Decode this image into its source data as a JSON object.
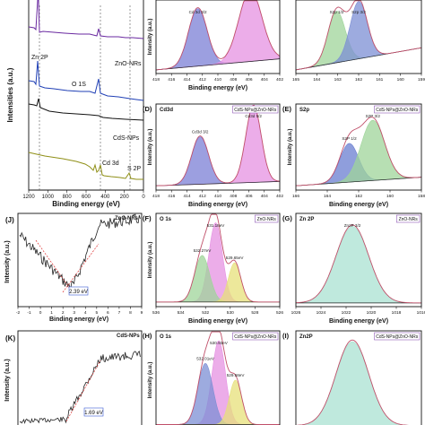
{
  "chart_data": [
    {
      "id": "survey",
      "type": "line",
      "xlabel": "Binding energy (eV)",
      "ylabel": "Intensities (a.u.)",
      "xlim": [
        1200,
        0
      ],
      "xticks": [
        "1200",
        "1000",
        "800",
        "600",
        "400",
        "200",
        "0"
      ],
      "annotations": [
        "Zn 2P",
        "O 1S",
        "Cd 3d",
        "S 2P"
      ],
      "series": [
        {
          "name": "ZnO-NRs",
          "color": "#6a2aa0"
        },
        {
          "name": "",
          "color": "#1f3fb5"
        },
        {
          "name": "",
          "color": "#111111"
        },
        {
          "name": "CdS-NPs",
          "color": "#8f8f16"
        }
      ]
    },
    {
      "id": "C",
      "type": "area",
      "xlabel": "Binding energy (eV)",
      "ylabel": "Intensity (a.u.)",
      "xlim": [
        418,
        402
      ],
      "xticks": [
        "418",
        "416",
        "414",
        "412",
        "410",
        "408",
        "406",
        "404",
        "402"
      ],
      "peaks": [
        {
          "label": "Cd 3d 3/2",
          "center": 412.6,
          "color": "#7b7fd6"
        },
        {
          "label": "",
          "center": 405.8,
          "color": "#e591e2"
        }
      ]
    },
    {
      "id": "B",
      "type": "area",
      "xlabel": "",
      "ylabel": "",
      "xlim": [
        166,
        158
      ],
      "xticks": [
        "165",
        "164",
        "163",
        "162",
        "161",
        "160",
        "159"
      ],
      "peaks": [
        {
          "label": "S2p 1/2",
          "center": 163.4,
          "color": "#9fd49a"
        },
        {
          "label": "S2p 3/2",
          "center": 162.0,
          "color": "#7c8fd4"
        }
      ]
    },
    {
      "id": "D",
      "panel": "(D)",
      "title": "Cd3d",
      "tag": "CdS-NPs@ZnO-NRs",
      "type": "area",
      "xlabel": "Binding energy (eV)",
      "ylabel": "Intensity (a.u.)",
      "xlim": [
        418,
        402
      ],
      "xticks": [
        "418",
        "416",
        "414",
        "412",
        "410",
        "408",
        "406",
        "404",
        "402"
      ],
      "peaks": [
        {
          "label": "Cd3d 3/2",
          "center": 412.3,
          "color": "#7b7fd6"
        },
        {
          "label": "Cd3d 5/2",
          "center": 405.4,
          "color": "#e591e2"
        }
      ]
    },
    {
      "id": "E",
      "panel": "(E)",
      "title": "S2p",
      "tag": "CdS-NPs@ZnO-NRs",
      "type": "area",
      "xlabel": "Binding energy (eV)",
      "ylabel": "Intensity (a.u.)",
      "xlim": [
        166,
        158
      ],
      "xticks": [
        "166",
        "164",
        "162",
        "160",
        "158"
      ],
      "peaks": [
        {
          "label": "S2P 1/2",
          "center": 162.6,
          "color": "#6a7ed0"
        },
        {
          "label": "S2P 3/2",
          "center": 161.1,
          "color": "#9fd49a"
        }
      ]
    },
    {
      "id": "J",
      "panel": "(J)",
      "tag": "ZnO-NRs",
      "type": "line",
      "xlabel": "Binding energy (eV)",
      "ylabel": "Intensity (a.u.)",
      "xlim": [
        -2,
        9
      ],
      "xticks": [
        "-2",
        "-1",
        "0",
        "1",
        "2",
        "3",
        "4",
        "5",
        "6",
        "7",
        "8",
        "9"
      ],
      "annotation": "2.39 eV",
      "edge_x": 2.39
    },
    {
      "id": "F",
      "panel": "(F)",
      "title": "O 1s",
      "tag": "ZnO-NRs",
      "type": "area",
      "xlabel": "Binding energy (eV)",
      "ylabel": "Intensity (a.u.)",
      "xlim": [
        536,
        526
      ],
      "xticks": [
        "536",
        "534",
        "532",
        "530",
        "528",
        "526"
      ],
      "peaks": [
        {
          "label": "531.18eV",
          "center": 531.18,
          "color": "#e591e2"
        },
        {
          "label": "532.27eV",
          "center": 532.27,
          "color": "#9fd49a"
        },
        {
          "label": "529.65eV",
          "center": 529.65,
          "color": "#e7e07a"
        }
      ]
    },
    {
      "id": "G",
      "panel": "(G)",
      "title": "Zn 2P",
      "tag": "ZnO-NRs",
      "type": "area",
      "xlabel": "Binding energy (eV)",
      "ylabel": "",
      "xlim": [
        1026,
        1016
      ],
      "xticks": [
        "1026",
        "1024",
        "1022",
        "1020",
        "1018",
        "1016"
      ],
      "peaks": [
        {
          "label": "Zn2P 3/2",
          "center": 1021.5,
          "color": "#a9e2d1"
        }
      ]
    },
    {
      "id": "K",
      "panel": "(K)",
      "tag": "CdS-NPs",
      "type": "line",
      "xlabel": "",
      "ylabel": "Intensity (a.u.)",
      "xlim": [
        -2,
        9
      ],
      "xticks": [],
      "annotation": "1.69 eV",
      "edge_x": 1.69
    },
    {
      "id": "H",
      "panel": "(H)",
      "title": "O 1s",
      "tag": "CdS-NPs@ZnO-NRs",
      "type": "area",
      "xlabel": "",
      "ylabel": "Intensity (a.u.)",
      "xlim": [
        536,
        526
      ],
      "xticks": [],
      "peaks": [
        {
          "label": "530.93eV",
          "center": 530.93,
          "color": "#e591e2"
        },
        {
          "label": "532.01eV",
          "center": 532.01,
          "color": "#7c8fd4"
        },
        {
          "label": "529.58eV",
          "center": 529.58,
          "color": "#e7e07a"
        }
      ]
    },
    {
      "id": "I",
      "panel": "(I)",
      "title": "Zn2P",
      "tag": "CdS-NPs@ZnO-NRs",
      "type": "area",
      "xlabel": "",
      "ylabel": "",
      "xlim": [
        1026,
        1016
      ],
      "xticks": [],
      "peaks": [
        {
          "label": "",
          "center": 1021.5,
          "color": "#a9e2d1"
        }
      ]
    }
  ]
}
